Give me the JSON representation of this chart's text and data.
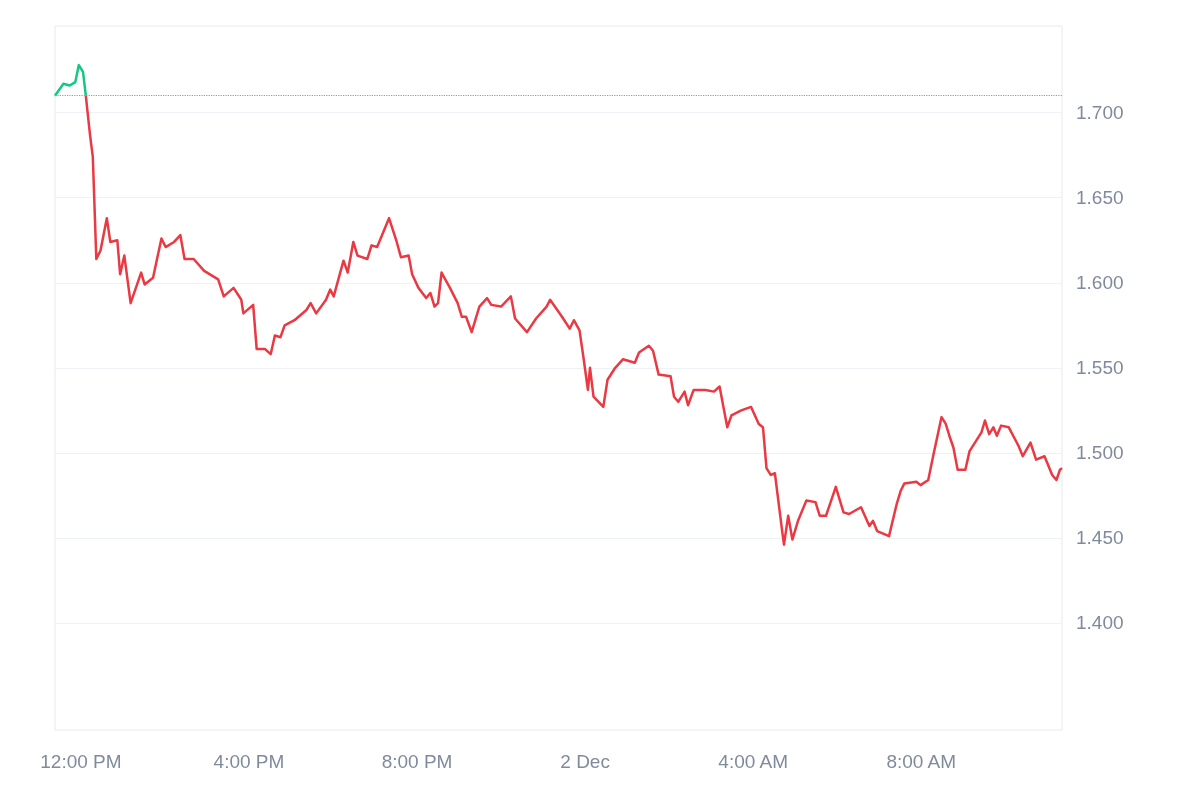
{
  "chart_data": {
    "type": "line",
    "xlim": [
      "--12-01T11:23",
      "--12-02T11:21"
    ],
    "ylim": [
      1.337,
      1.751
    ],
    "xticks": [
      {
        "value": "--12-01T12:00",
        "label": "12:00 PM"
      },
      {
        "value": "--12-01T16:00",
        "label": "4:00 PM"
      },
      {
        "value": "--12-01T20:00",
        "label": "8:00 PM"
      },
      {
        "value": "--12-02T00:00",
        "label": "2 Dec"
      },
      {
        "value": "--12-02T04:00",
        "label": "4:00 AM"
      },
      {
        "value": "--12-02T08:00",
        "label": "8:00 AM"
      }
    ],
    "yticks": [
      {
        "value": 1.4,
        "label": "1.400"
      },
      {
        "value": 1.45,
        "label": "1.450"
      },
      {
        "value": 1.5,
        "label": "1.500"
      },
      {
        "value": 1.55,
        "label": "1.550"
      },
      {
        "value": 1.6,
        "label": "1.600"
      },
      {
        "value": 1.65,
        "label": "1.650"
      },
      {
        "value": 1.7,
        "label": "1.700"
      }
    ],
    "grid": "y",
    "marker": "none",
    "ref_lines": [
      {
        "axis": "y",
        "value": 1.71,
        "color": "#999999",
        "line_style": "dotted"
      }
    ],
    "series": [
      {
        "color": "#16c784",
        "x": [
          "--12-01T11:23",
          "--12-01T11:35",
          "--12-01T11:44",
          "--12-01T11:52",
          "--12-01T11:57",
          "--12-01T12:03",
          "--12-01T12:07"
        ],
        "values": [
          1.71,
          1.717,
          1.716,
          1.718,
          1.728,
          1.724,
          1.71
        ]
      },
      {
        "type": "line",
        "color": "#ea3943",
        "x": [
          "--12-01T12:07",
          "--12-01T12:13",
          "--12-01T12:17",
          "--12-01T12:22",
          "--12-01T12:28",
          "--12-01T12:37",
          "--12-01T12:42",
          "--12-01T12:52",
          "--12-01T12:56",
          "--12-01T13:02",
          "--12-01T13:11",
          "--12-01T13:26",
          "--12-01T13:31",
          "--12-01T13:43",
          "--12-01T13:55",
          "--12-01T14:01",
          "--12-01T14:13",
          "--12-01T14:22",
          "--12-01T14:28",
          "--12-01T14:41",
          "--12-01T14:56",
          "--12-01T15:16",
          "--12-01T15:24",
          "--12-01T15:38",
          "--12-01T15:49",
          "--12-01T15:52",
          "--12-01T16:06",
          "--12-01T16:11",
          "--12-01T16:23",
          "--12-01T16:31",
          "--12-01T16:37",
          "--12-01T16:45",
          "--12-01T16:51",
          "--12-01T17:05",
          "--12-01T17:22",
          "--12-01T17:28",
          "--12-01T17:36",
          "--12-01T17:50",
          "--12-01T17:56",
          "--12-01T18:01",
          "--12-01T18:15",
          "--12-01T18:21",
          "--12-01T18:29",
          "--12-01T18:35",
          "--12-01T18:49",
          "--12-01T18:55",
          "--12-01T19:03",
          "--12-01T19:20",
          "--12-01T19:31",
          "--12-01T19:37",
          "--12-01T19:48",
          "--12-01T19:53",
          "--12-01T20:02",
          "--12-01T20:13",
          "--12-01T20:19",
          "--12-01T20:25",
          "--12-01T20:30",
          "--12-01T20:35",
          "--12-01T20:47",
          "--12-01T20:58",
          "--12-01T21:04",
          "--12-01T21:10",
          "--12-01T21:18",
          "--12-01T21:29",
          "--12-01T21:40",
          "--12-01T21:46",
          "--12-01T22:00",
          "--12-01T22:14",
          "--12-01T22:20",
          "--12-01T22:37",
          "--12-01T22:50",
          "--12-01T23:05",
          "--12-01T23:10",
          "--12-01T23:27",
          "--12-01T23:38",
          "--12-01T23:44",
          "--12-01T23:52",
          "--12-01T23:58",
          "--12-02T00:04",
          "--12-02T00:07",
          "--12-02T00:12",
          "--12-02T00:26",
          "--12-02T00:32",
          "--12-02T00:43",
          "--12-02T00:54",
          "--12-02T01:11",
          "--12-02T01:17",
          "--12-02T01:31",
          "--12-02T01:37",
          "--12-02T01:45",
          "--12-02T02:02",
          "--12-02T02:07",
          "--12-02T02:13",
          "--12-02T02:22",
          "--12-02T02:27",
          "--12-02T02:35",
          "--12-02T02:52",
          "--12-02T03:04",
          "--12-02T03:12",
          "--12-02T03:23",
          "--12-02T03:29",
          "--12-02T03:43",
          "--12-02T03:57",
          "--12-02T04:08",
          "--12-02T04:14",
          "--12-02T04:19",
          "--12-02T04:25",
          "--12-02T04:31",
          "--12-02T04:42",
          "--12-02T04:44",
          "--12-02T04:50",
          "--12-02T04:56",
          "--12-02T05:04",
          "--12-02T05:16",
          "--12-02T05:29",
          "--12-02T05:35",
          "--12-02T05:44",
          "--12-02T05:58",
          "--12-02T06:09",
          "--12-02T06:17",
          "--12-02T06:34",
          "--12-02T06:46",
          "--12-02T06:51",
          "--12-02T06:57",
          "--12-02T07:14",
          "--12-02T07:25",
          "--12-02T07:31",
          "--12-02T07:36",
          "--12-02T07:53",
          "--12-02T07:59",
          "--12-02T08:10",
          "--12-02T08:18",
          "--12-02T08:29",
          "--12-02T08:35",
          "--12-02T08:41",
          "--12-02T08:46",
          "--12-02T08:52",
          "--12-02T09:03",
          "--12-02T09:09",
          "--12-02T09:26",
          "--12-02T09:31",
          "--12-02T09:37",
          "--12-02T09:43",
          "--12-02T09:48",
          "--12-02T09:54",
          "--12-02T10:05",
          "--12-02T10:19",
          "--12-02T10:25",
          "--12-02T10:36",
          "--12-02T10:44",
          "--12-02T10:56",
          "--12-02T11:07",
          "--12-02T11:13",
          "--12-02T11:18",
          "--12-02T11:21"
        ],
        "values": [
          1.71,
          1.687,
          1.674,
          1.614,
          1.619,
          1.638,
          1.624,
          1.625,
          1.605,
          1.616,
          1.588,
          1.606,
          1.599,
          1.603,
          1.626,
          1.621,
          1.624,
          1.628,
          1.614,
          1.614,
          1.607,
          1.602,
          1.592,
          1.597,
          1.59,
          1.582,
          1.587,
          1.561,
          1.561,
          1.558,
          1.569,
          1.568,
          1.575,
          1.578,
          1.584,
          1.588,
          1.582,
          1.59,
          1.596,
          1.592,
          1.613,
          1.606,
          1.624,
          1.616,
          1.614,
          1.622,
          1.621,
          1.638,
          1.624,
          1.615,
          1.616,
          1.605,
          1.597,
          1.591,
          1.594,
          1.586,
          1.588,
          1.606,
          1.597,
          1.588,
          1.58,
          1.58,
          1.571,
          1.586,
          1.591,
          1.587,
          1.586,
          1.592,
          1.579,
          1.571,
          1.579,
          1.586,
          1.59,
          1.58,
          1.573,
          1.578,
          1.572,
          1.555,
          1.537,
          1.55,
          1.533,
          1.527,
          1.543,
          1.55,
          1.555,
          1.553,
          1.559,
          1.563,
          1.56,
          1.546,
          1.545,
          1.533,
          1.53,
          1.536,
          1.528,
          1.537,
          1.537,
          1.536,
          1.539,
          1.515,
          1.522,
          1.525,
          1.527,
          1.517,
          1.515,
          1.491,
          1.487,
          1.488,
          1.452,
          1.446,
          1.463,
          1.449,
          1.46,
          1.472,
          1.471,
          1.463,
          1.463,
          1.48,
          1.465,
          1.464,
          1.468,
          1.457,
          1.46,
          1.454,
          1.451,
          1.47,
          1.478,
          1.482,
          1.483,
          1.481,
          1.484,
          1.5,
          1.521,
          1.517,
          1.509,
          1.503,
          1.49,
          1.49,
          1.501,
          1.512,
          1.519,
          1.511,
          1.515,
          1.51,
          1.516,
          1.515,
          1.504,
          1.498,
          1.506,
          1.496,
          1.498,
          1.487,
          1.484,
          1.49,
          1.491
        ]
      }
    ]
  }
}
